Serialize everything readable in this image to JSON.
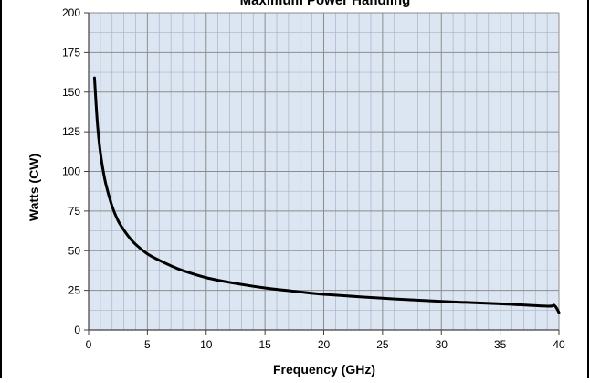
{
  "colors": {
    "plot_background": "#dce6f2",
    "major_grid": "#8c8c8c",
    "minor_grid": "#aab4c0",
    "line": "#000000",
    "frame": "#000000"
  },
  "chart_data": {
    "type": "line",
    "title": "Maximum Power Handling",
    "xlabel": "Frequency (GHz)",
    "ylabel": "Watts (CW)",
    "xlim": [
      0,
      40
    ],
    "ylim": [
      0,
      200
    ],
    "x_ticks": [
      0,
      5,
      10,
      15,
      20,
      25,
      30,
      35,
      40
    ],
    "y_ticks": [
      0,
      25,
      50,
      75,
      100,
      125,
      150,
      175,
      200
    ],
    "x_minor_step": 1,
    "y_minor_step": 12.5,
    "grid": true,
    "legend": "none",
    "series": [
      {
        "x": [
          0.5,
          0.75,
          1,
          1.25,
          1.5,
          2,
          2.5,
          3,
          3.5,
          4,
          5,
          6,
          7,
          8,
          10,
          12,
          15,
          18,
          20,
          25,
          30,
          35,
          39,
          39.6,
          40
        ],
        "y": [
          159,
          130,
          112,
          100,
          91,
          78,
          69,
          63,
          58,
          54,
          48,
          44,
          40.5,
          37.5,
          33,
          30,
          26.5,
          24,
          22.5,
          20,
          18,
          16.5,
          15,
          15.5,
          11
        ]
      }
    ]
  }
}
